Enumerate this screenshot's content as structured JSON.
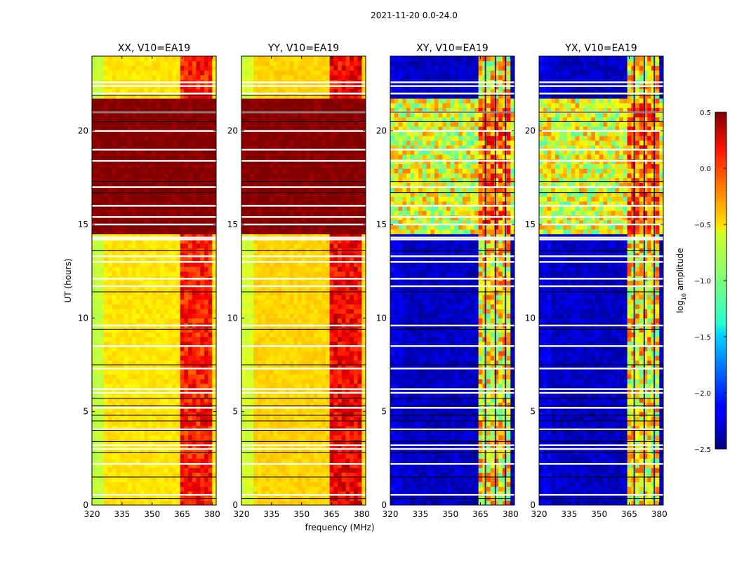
{
  "figure": {
    "suptitle": "2021-11-20 0.0-24.0",
    "xlabel": "frequency (MHz)",
    "ylabel": "UT (hours)",
    "colorbar_label": "log",
    "colorbar_label_sub": "10",
    "colorbar_label_rest": " amplitude"
  },
  "chart_data": {
    "type": "heatmap",
    "x": {
      "label": "frequency (MHz)",
      "lim": [
        320,
        382
      ],
      "ticks": [
        320,
        335,
        350,
        365,
        380
      ]
    },
    "y": {
      "label": "UT (hours)",
      "lim": [
        0,
        24
      ],
      "ticks": [
        0,
        5,
        10,
        15,
        20
      ]
    },
    "colorbar": {
      "label": "log10 amplitude",
      "lim": [
        -2.5,
        0.5
      ],
      "ticks": [
        "0.5",
        "0.0",
        "−0.5",
        "−1.0",
        "−1.5",
        "−2.0",
        "−2.5"
      ],
      "tick_values": [
        0.5,
        0.0,
        -0.5,
        -1.0,
        -1.5,
        -2.0,
        -2.5
      ],
      "colormap": "jet"
    },
    "panels": [
      {
        "title": "XX, V10=EA19",
        "pol": "XX",
        "base_level": -0.55,
        "active_band_mhz": [
          364,
          380
        ],
        "band_level": 0.05,
        "night_hours": [
          14.5,
          21.8
        ],
        "night_level": 0.5
      },
      {
        "title": "YY, V10=EA19",
        "pol": "YY",
        "base_level": -0.5,
        "active_band_mhz": [
          364,
          380
        ],
        "band_level": 0.15,
        "night_hours": [
          14.5,
          21.8
        ],
        "night_level": 0.5
      },
      {
        "title": "XY, V10=EA19",
        "pol": "XY",
        "base_level": -2.3,
        "active_band_mhz": [
          364,
          380
        ],
        "band_level": -0.6,
        "night_hours": [
          14.5,
          21.8
        ],
        "night_level": -0.7
      },
      {
        "title": "YX, V10=EA19",
        "pol": "YX",
        "base_level": -2.3,
        "active_band_mhz": [
          364,
          380
        ],
        "band_level": -0.6,
        "night_hours": [
          14.5,
          21.8
        ],
        "night_level": -0.7
      }
    ]
  }
}
